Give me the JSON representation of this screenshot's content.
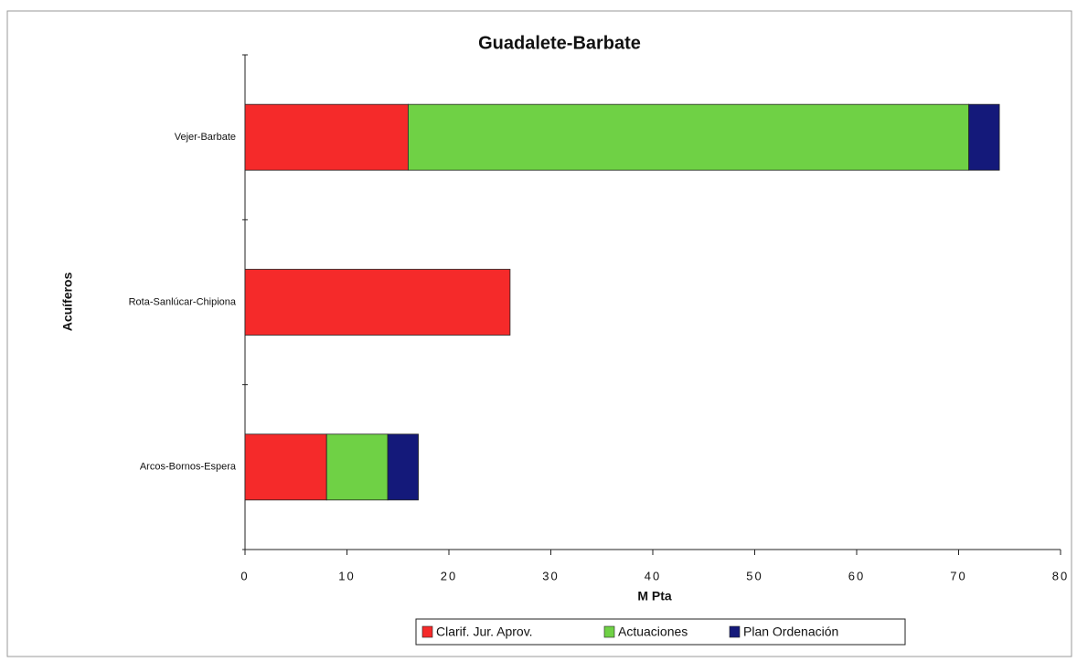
{
  "chart_data": {
    "type": "stacked_barh",
    "title": "Guadalete-Barbate",
    "x_label": "M Pta",
    "y_label": "Acuíferos",
    "categories": [
      "Vejer-Barbate",
      "Rota-Sanlúcar-Chipiona",
      "Arcos-Bornos-Espera"
    ],
    "series": [
      {
        "name": "Clarif. Jur. Aprov.",
        "color": "#f52a2a",
        "values": [
          16,
          26,
          8
        ]
      },
      {
        "name": "Actuaciones",
        "color": "#6fd145",
        "values": [
          55,
          0,
          6
        ]
      },
      {
        "name": "Plan Ordenación",
        "color": "#14197a",
        "values": [
          3,
          0,
          3
        ]
      }
    ],
    "xlim": [
      0,
      80
    ],
    "xticks": [
      0,
      10,
      20,
      30,
      40,
      50,
      60,
      70,
      80
    ],
    "legend": "bottom"
  }
}
